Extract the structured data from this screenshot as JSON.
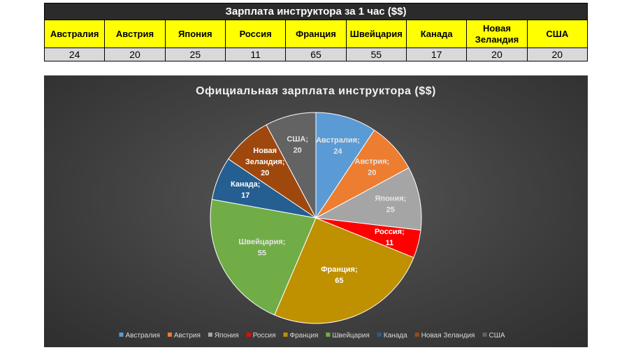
{
  "table": {
    "title": "Зарплата инструктора за 1 час ($$)",
    "header_lines": [
      [
        "Австралия"
      ],
      [
        "Австрия"
      ],
      [
        "Япония"
      ],
      [
        "Россия"
      ],
      [
        "Франция"
      ],
      [
        "Швейцария"
      ],
      [
        "Канада"
      ],
      [
        "Новая",
        "Зеландия"
      ],
      [
        "США"
      ]
    ],
    "values": [
      "24",
      "20",
      "25",
      "11",
      "65",
      "55",
      "17",
      "20",
      "20"
    ]
  },
  "chart_data": {
    "type": "pie",
    "title": "Официальная зарплата инструктора ($$)",
    "categories": [
      "Австралия",
      "Австрия",
      "Япония",
      "Россия",
      "Франция",
      "Швейцария",
      "Канада",
      "Новая Зеландия",
      "США"
    ],
    "values": [
      24,
      20,
      25,
      11,
      65,
      55,
      17,
      20,
      20
    ],
    "colors": [
      "#5b9bd5",
      "#ed7d31",
      "#a5a5a5",
      "#ff0000",
      "#bf9000",
      "#70ad47",
      "#255e91",
      "#9e480e",
      "#636363"
    ],
    "data_labels": [
      [
        "Австралия;",
        "24"
      ],
      [
        "Австрия;",
        "20"
      ],
      [
        "Япония;",
        "25"
      ],
      [
        "Россия;",
        "11"
      ],
      [
        "Франция;",
        "65"
      ],
      [
        "Швейцария;",
        "55"
      ],
      [
        "Канада;",
        "17"
      ],
      [
        "Новая",
        "Зеландия;",
        "20"
      ],
      [
        "США;",
        "20"
      ]
    ],
    "label_colors": [
      "#e7e6e6",
      "#e7e6e6",
      "#e7e6e6",
      "#ffffff",
      "#ffffff",
      "#e7e6e6",
      "#ffffff",
      "#ffffff",
      "#e7e6e6"
    ],
    "legend": [
      "Австралия",
      "Австрия",
      "Япония",
      "Россия",
      "Франция",
      "Швейцария",
      "Канада",
      "Новая Зеландия",
      "США"
    ],
    "legend_position": "bottom",
    "start_angle_deg": 0,
    "direction": "clockwise"
  }
}
